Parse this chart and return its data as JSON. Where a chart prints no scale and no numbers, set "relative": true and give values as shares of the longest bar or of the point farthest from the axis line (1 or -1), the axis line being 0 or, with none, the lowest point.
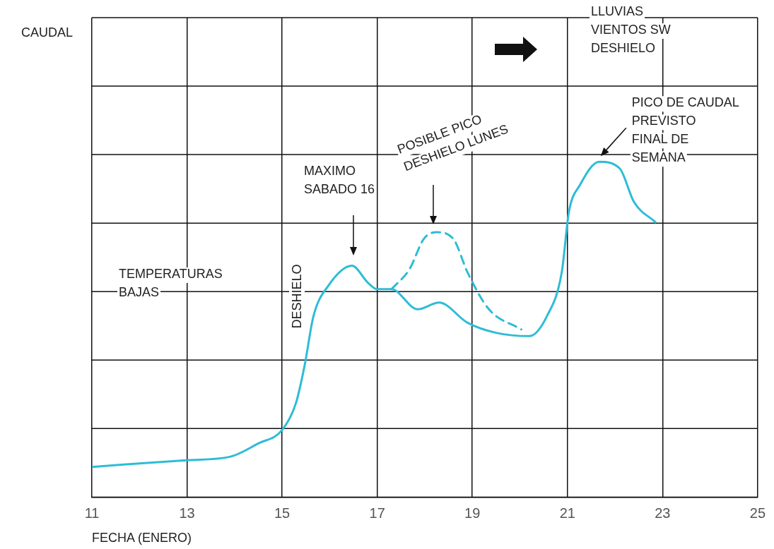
{
  "chart_data": {
    "type": "line",
    "relative": true,
    "xlabel": "FECHA (ENERO)",
    "xlim": [
      11,
      25
    ],
    "xticks": [
      11,
      13,
      15,
      17,
      19,
      21,
      23,
      25
    ],
    "grid": true,
    "marker": "none",
    "legend": false,
    "series": [
      {
        "color": "#2ebcd6",
        "line_style": "solid",
        "x": [
          11,
          13,
          13.9,
          14.5,
          15,
          15.29,
          15.47,
          15.66,
          15.97,
          16.47,
          16.8,
          17,
          17.3,
          17.85,
          18.3,
          18.9,
          19.5,
          20.2,
          20.57,
          20.88,
          21.03,
          21.26,
          21.67,
          22.1,
          22.4,
          22.85
        ],
        "values": [
          0.09,
          0.11,
          0.12,
          0.16,
          0.2,
          0.28,
          0.39,
          0.54,
          0.63,
          0.69,
          0.64,
          0.62,
          0.62,
          0.56,
          0.58,
          0.52,
          0.49,
          0.48,
          0.54,
          0.67,
          0.85,
          0.93,
          1,
          0.98,
          0.88,
          0.82
        ]
      },
      {
        "color": "#2ebcd6",
        "line_style": "dashed",
        "x": [
          17.3,
          17.68,
          17.98,
          18.25,
          18.6,
          18.9,
          19.35,
          20.03
        ],
        "values": [
          0.62,
          0.68,
          0.77,
          0.79,
          0.77,
          0.67,
          0.56,
          0.5
        ]
      }
    ],
    "annotations": [
      "CAUDAL",
      "TEMPERATURAS\nBAJAS",
      "DESHIELO",
      "MAXIMO\nSABADO 16",
      "POSIBLE PICO\nDESHIELO LUNES",
      "LLUVIAS\nVIENTOS SW\nDESHIELO",
      {
        "text": "PICO DE CAUDAL\nPREVISTO\nFINAL DE\nSEMANA",
        "x": 21.67,
        "y": 1
      }
    ]
  }
}
